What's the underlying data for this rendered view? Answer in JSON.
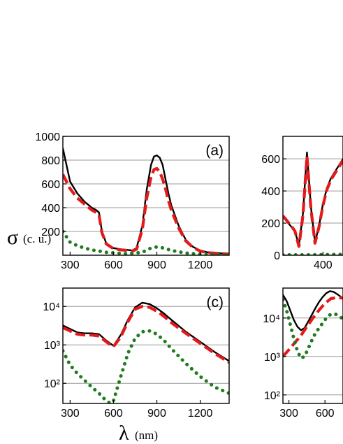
{
  "figure": {
    "ylabel_symbol": "σ",
    "ylabel_unit": "(c. u.)",
    "xlabel_symbol": "λ",
    "xlabel_unit": "(nm)"
  },
  "chart_data": [
    {
      "type": "line",
      "panel_label": "(a)",
      "xlim": [
        250,
        1400
      ],
      "ylim": [
        0,
        1000
      ],
      "yscale": "linear",
      "xticks": [
        300,
        600,
        900,
        1200
      ],
      "yticks": [
        200,
        400,
        600,
        800,
        1000
      ],
      "grid": "horizontal",
      "series": [
        {
          "style": "solid",
          "color": "#000000",
          "x": [
            250,
            300,
            350,
            400,
            450,
            480,
            500,
            520,
            550,
            600,
            650,
            700,
            730,
            760,
            800,
            830,
            860,
            880,
            900,
            920,
            940,
            960,
            980,
            1000,
            1050,
            1100,
            1150,
            1200,
            1250,
            1300,
            1350,
            1400
          ],
          "y": [
            900,
            620,
            520,
            450,
            400,
            380,
            360,
            200,
            100,
            60,
            50,
            45,
            40,
            60,
            250,
            550,
            760,
            830,
            840,
            820,
            760,
            640,
            520,
            420,
            250,
            130,
            70,
            40,
            25,
            20,
            15,
            12
          ]
        },
        {
          "style": "dashed",
          "color": "#e31a1c",
          "x": [
            250,
            300,
            350,
            400,
            450,
            480,
            500,
            520,
            550,
            600,
            650,
            700,
            730,
            760,
            800,
            830,
            860,
            880,
            900,
            920,
            940,
            960,
            980,
            1000,
            1050,
            1100,
            1150,
            1200,
            1250,
            1300,
            1350,
            1400
          ],
          "y": [
            680,
            560,
            480,
            430,
            380,
            360,
            340,
            190,
            95,
            55,
            45,
            40,
            35,
            50,
            220,
            480,
            660,
            720,
            730,
            700,
            640,
            560,
            460,
            380,
            230,
            120,
            65,
            35,
            22,
            17,
            13,
            10
          ]
        },
        {
          "style": "dotted",
          "color": "#1e7b1e",
          "x": [
            250,
            300,
            350,
            400,
            450,
            500,
            550,
            600,
            650,
            700,
            800,
            850,
            900,
            950,
            1000,
            1100,
            1200,
            1300,
            1400
          ],
          "y": [
            200,
            110,
            80,
            60,
            45,
            35,
            25,
            20,
            15,
            12,
            25,
            55,
            70,
            60,
            40,
            18,
            8,
            4,
            2
          ]
        }
      ]
    },
    {
      "type": "line",
      "panel_label": "",
      "xlim": [
        200,
        500
      ],
      "ylim": [
        0,
        740
      ],
      "yscale": "linear",
      "xticks": [
        400
      ],
      "yticks": [
        0,
        200,
        400,
        600
      ],
      "grid": "horizontal",
      "series": [
        {
          "style": "solid",
          "color": "#000000",
          "x": [
            200,
            220,
            240,
            260,
            280,
            300,
            320,
            340,
            360,
            380,
            400,
            420,
            440,
            460,
            480,
            500
          ],
          "y": [
            240,
            210,
            180,
            150,
            60,
            260,
            640,
            300,
            80,
            180,
            320,
            420,
            480,
            520,
            560,
            600
          ]
        },
        {
          "style": "dashed",
          "color": "#e31a1c",
          "x": [
            200,
            220,
            240,
            260,
            280,
            300,
            320,
            340,
            360,
            380,
            400,
            420,
            440,
            460,
            480,
            500
          ],
          "y": [
            245,
            215,
            185,
            150,
            55,
            250,
            615,
            290,
            75,
            175,
            310,
            410,
            470,
            510,
            550,
            590
          ]
        },
        {
          "style": "dotted",
          "color": "#1e7b1e",
          "x": [
            200,
            260,
            320,
            380,
            440,
            500
          ],
          "y": [
            2,
            2,
            2,
            3,
            4,
            5
          ]
        }
      ]
    },
    {
      "type": "line",
      "panel_label": "(c)",
      "xlim": [
        250,
        1400
      ],
      "ylim": [
        30,
        30000
      ],
      "yscale": "log",
      "xticks": [
        300,
        600,
        900,
        1200
      ],
      "yticks": [
        100,
        1000,
        10000
      ],
      "grid": "horizontal",
      "series": [
        {
          "style": "solid",
          "color": "#000000",
          "x": [
            250,
            300,
            350,
            400,
            450,
            500,
            550,
            600,
            650,
            700,
            750,
            800,
            850,
            900,
            950,
            1000,
            1100,
            1200,
            1300,
            1400
          ],
          "y": [
            3200,
            2600,
            2100,
            2000,
            2000,
            1900,
            1300,
            950,
            1800,
            4500,
            9500,
            12500,
            11500,
            9000,
            6500,
            4500,
            2200,
            1200,
            650,
            380
          ]
        },
        {
          "style": "dashed",
          "color": "#e31a1c",
          "x": [
            250,
            300,
            350,
            400,
            450,
            500,
            550,
            600,
            650,
            700,
            750,
            800,
            850,
            900,
            950,
            1000,
            1100,
            1200,
            1300,
            1400
          ],
          "y": [
            2800,
            2300,
            1900,
            1800,
            1800,
            1700,
            1200,
            900,
            1600,
            4000,
            8500,
            10000,
            9500,
            7500,
            5500,
            3800,
            2000,
            1100,
            600,
            350
          ]
        },
        {
          "style": "dotted",
          "color": "#1e7b1e",
          "x": [
            250,
            300,
            350,
            400,
            450,
            500,
            550,
            580,
            600,
            650,
            700,
            750,
            800,
            850,
            900,
            950,
            1000,
            1100,
            1200,
            1300,
            1400
          ],
          "y": [
            700,
            300,
            180,
            120,
            80,
            55,
            35,
            30,
            35,
            150,
            600,
            1500,
            2200,
            2300,
            1900,
            1300,
            800,
            330,
            150,
            80,
            55
          ]
        }
      ]
    },
    {
      "type": "line",
      "panel_label": "",
      "xlim": [
        250,
        750
      ],
      "ylim": [
        60,
        60000
      ],
      "yscale": "log",
      "xticks": [
        300,
        600
      ],
      "yticks": [
        100,
        1000,
        10000
      ],
      "grid": "horizontal",
      "series": [
        {
          "style": "solid",
          "color": "#000000",
          "x": [
            250,
            280,
            310,
            340,
            370,
            400,
            430,
            460,
            490,
            520,
            550,
            580,
            610,
            640,
            670,
            700,
            730,
            750
          ],
          "y": [
            40000,
            28000,
            16000,
            9000,
            6000,
            4800,
            5500,
            8000,
            12000,
            18000,
            26000,
            35000,
            44000,
            50000,
            48000,
            42000,
            36000,
            32000
          ]
        },
        {
          "style": "dashed",
          "color": "#e31a1c",
          "x": [
            250,
            300,
            350,
            400,
            450,
            500,
            550,
            600,
            650,
            700,
            750
          ],
          "y": [
            1000,
            1500,
            2300,
            3500,
            6000,
            10000,
            16000,
            24000,
            32000,
            34000,
            33000
          ]
        },
        {
          "style": "dotted",
          "color": "#1e7b1e",
          "x": [
            250,
            280,
            310,
            340,
            370,
            400,
            430,
            460,
            490,
            520,
            560,
            600,
            640,
            680,
            720,
            750
          ],
          "y": [
            30000,
            16000,
            7000,
            3000,
            1400,
            900,
            1000,
            1600,
            2600,
            4000,
            6000,
            9000,
            12000,
            13000,
            11000,
            9500
          ]
        }
      ]
    }
  ]
}
